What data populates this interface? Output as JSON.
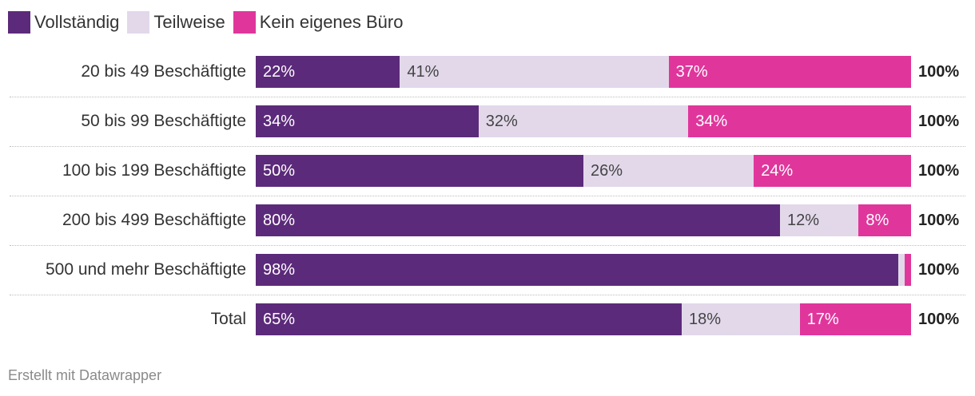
{
  "legend": [
    {
      "label": "Vollständig",
      "color": "#5c2a7a"
    },
    {
      "label": "Teilweise",
      "color": "#e2d8ea"
    },
    {
      "label": "Kein eigenes Büro",
      "color": "#e0369c"
    }
  ],
  "chart_data": {
    "type": "bar",
    "orientation": "horizontal",
    "stacked": true,
    "categories": [
      "20 bis 49 Beschäftigte",
      "50 bis 99 Beschäftigte",
      "100 bis 199 Beschäftigte",
      "200 bis 499 Beschäftigte",
      "500 und mehr Beschäftigte",
      "Total"
    ],
    "series": [
      {
        "name": "Vollständig",
        "values": [
          22,
          34,
          50,
          80,
          98,
          65
        ],
        "labels": [
          "22%",
          "34%",
          "50%",
          "80%",
          "98%",
          "65%"
        ]
      },
      {
        "name": "Teilweise",
        "values": [
          41,
          32,
          26,
          12,
          1,
          18
        ],
        "labels": [
          "41%",
          "32%",
          "26%",
          "12%",
          "",
          "18%"
        ]
      },
      {
        "name": "Kein eigenes Büro",
        "values": [
          37,
          34,
          24,
          8,
          1,
          17
        ],
        "labels": [
          "37%",
          "34%",
          "24%",
          "8%",
          "",
          "17%"
        ]
      }
    ],
    "totals": [
      "100%",
      "100%",
      "100%",
      "100%",
      "100%",
      "100%"
    ],
    "xlim": [
      0,
      100
    ],
    "title": "",
    "xlabel": "",
    "ylabel": "",
    "legend_position": "top-left",
    "grid": false
  },
  "footer": {
    "text": "Erstellt mit Datawrapper"
  }
}
